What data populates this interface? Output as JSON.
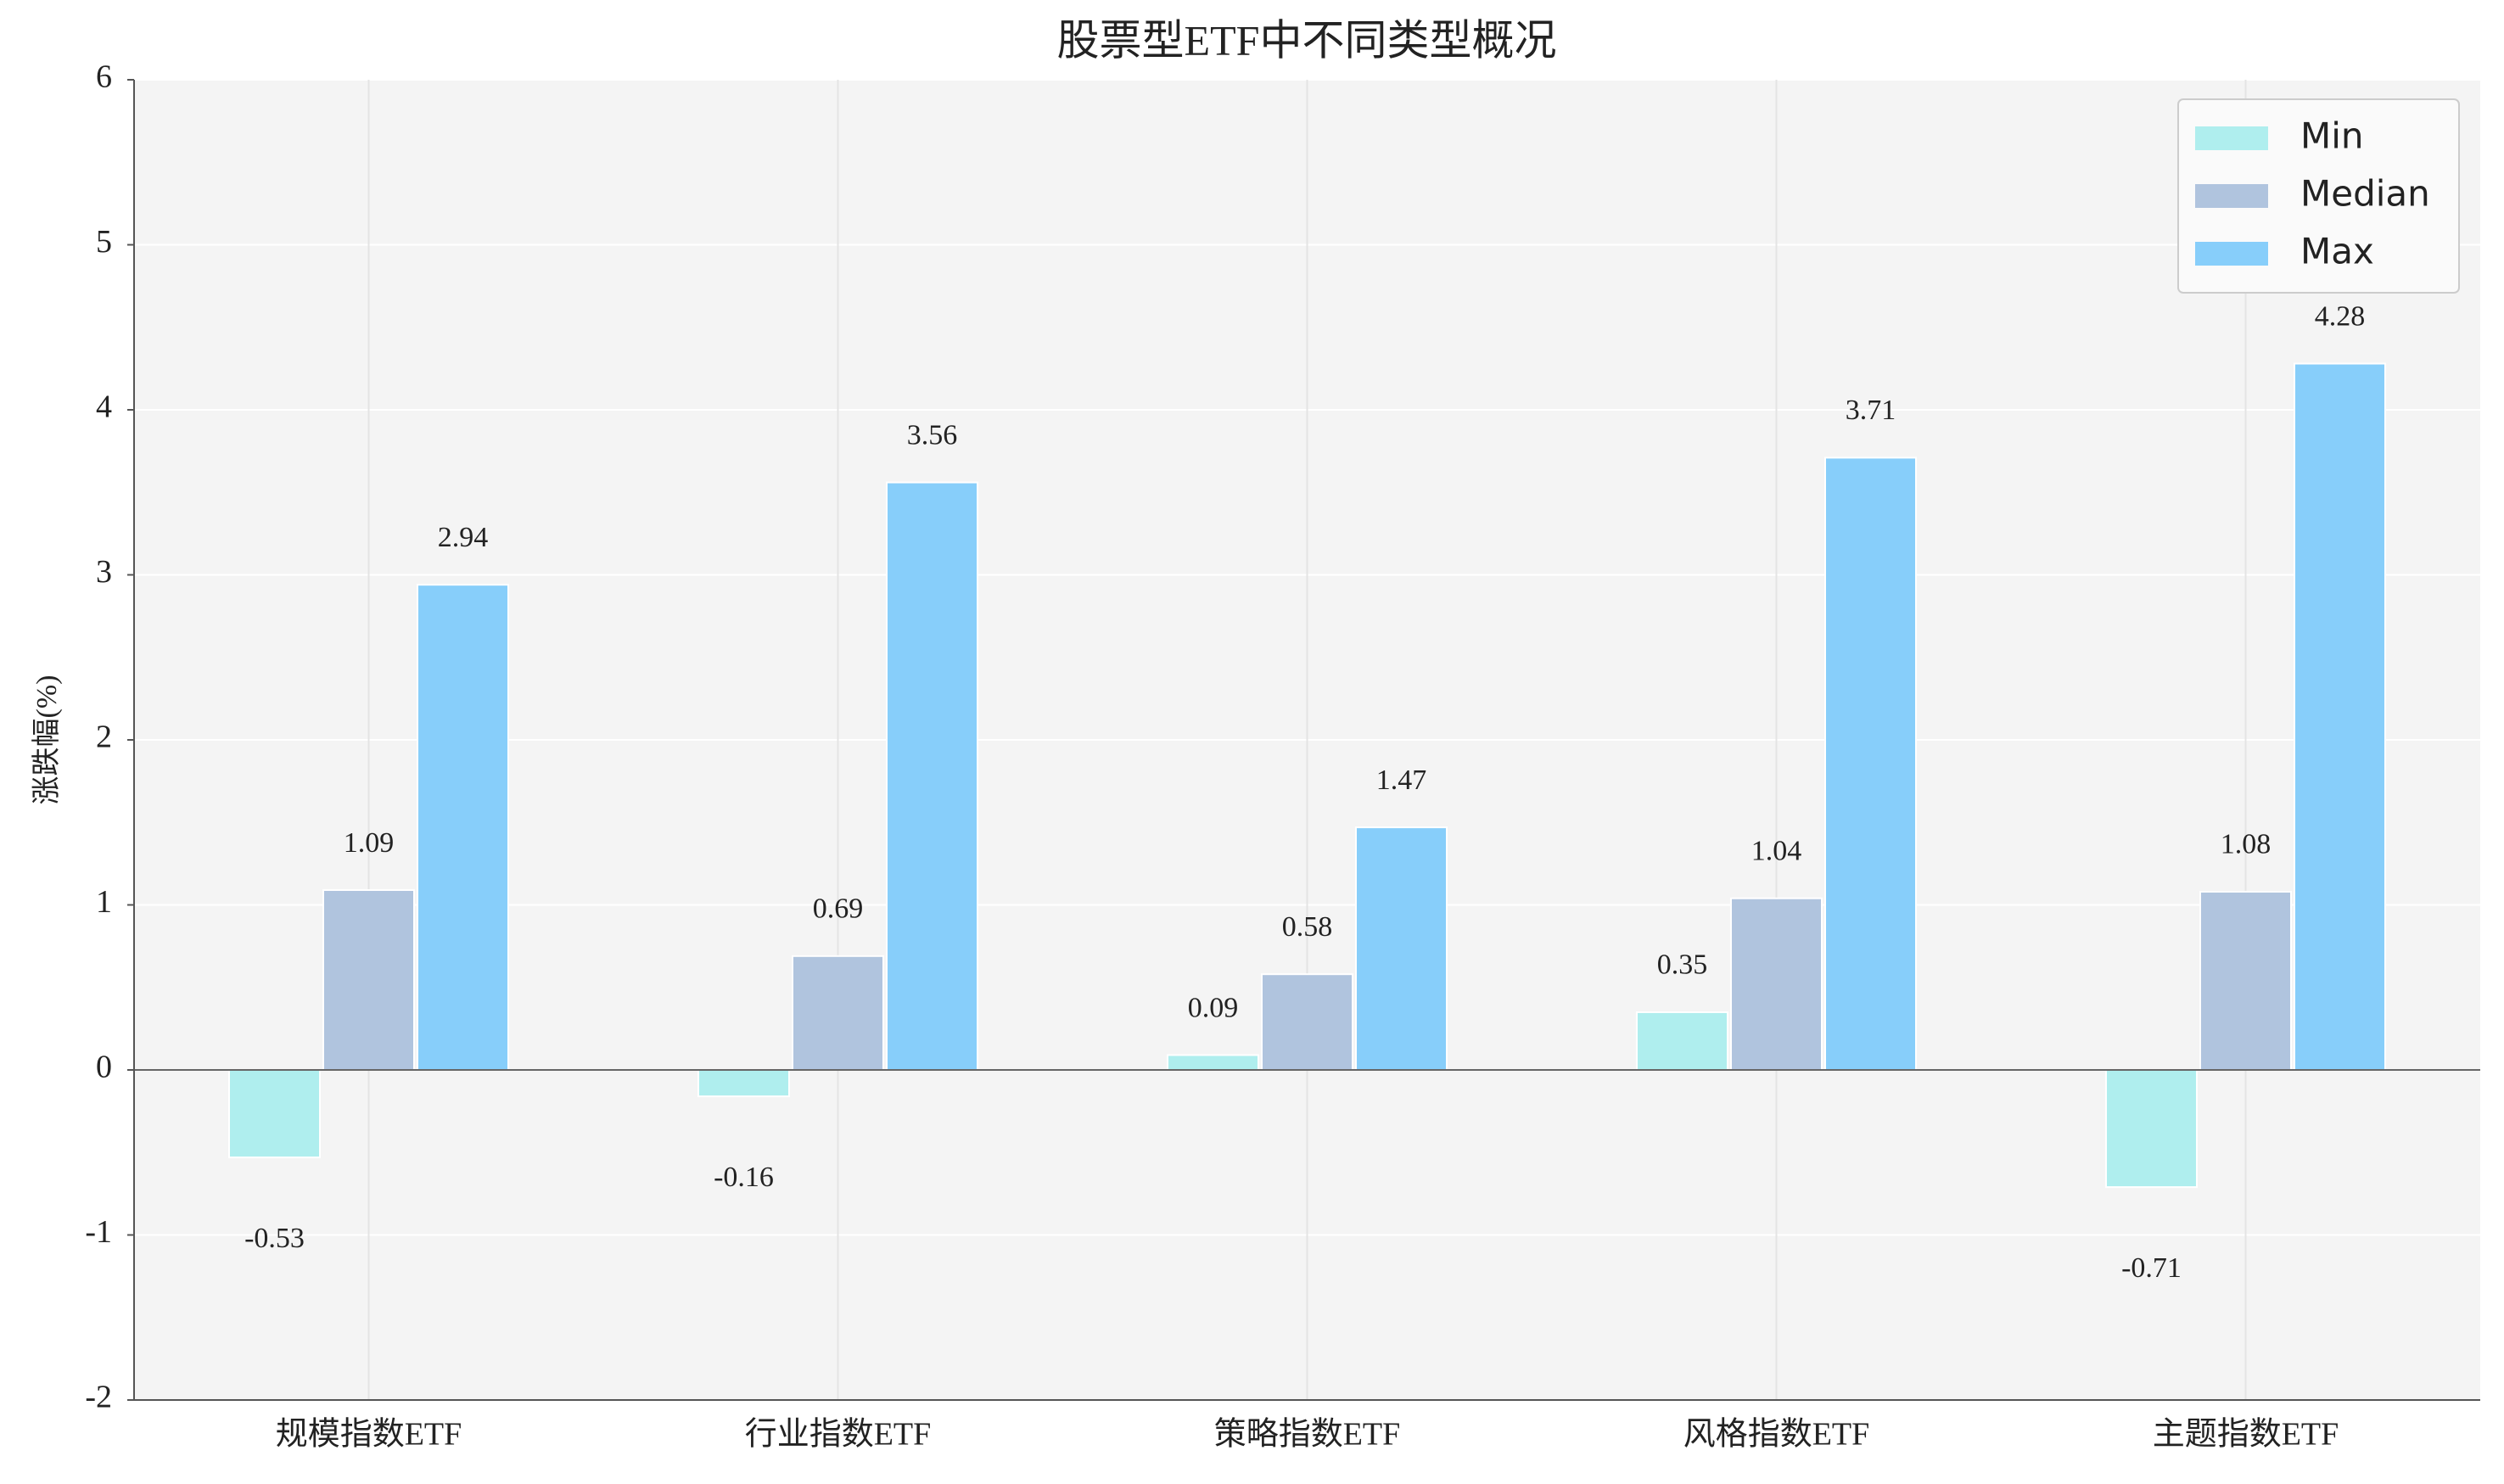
{
  "chart_data": {
    "type": "bar",
    "title": "股票型ETF中不同类型概况",
    "y_label": "涨跌幅(%)",
    "categories": [
      "规模指数ETF",
      "行业指数ETF",
      "策略指数ETF",
      "风格指数ETF",
      "主题指数ETF"
    ],
    "series": [
      {
        "name": "Min",
        "color": "#afeeee",
        "values": [
          -0.53,
          -0.16,
          0.09,
          0.35,
          -0.71
        ]
      },
      {
        "name": "Median",
        "color": "#b0c4de",
        "values": [
          1.09,
          0.69,
          0.58,
          1.04,
          1.08
        ]
      },
      {
        "name": "Max",
        "color": "#87cefa",
        "values": [
          2.94,
          3.56,
          1.47,
          3.71,
          4.28
        ]
      }
    ],
    "ylim": [
      -2,
      6
    ],
    "yticks": [
      -2,
      -1,
      0,
      1,
      2,
      3,
      4,
      5,
      6
    ],
    "grid": true,
    "legend": "upper right"
  }
}
